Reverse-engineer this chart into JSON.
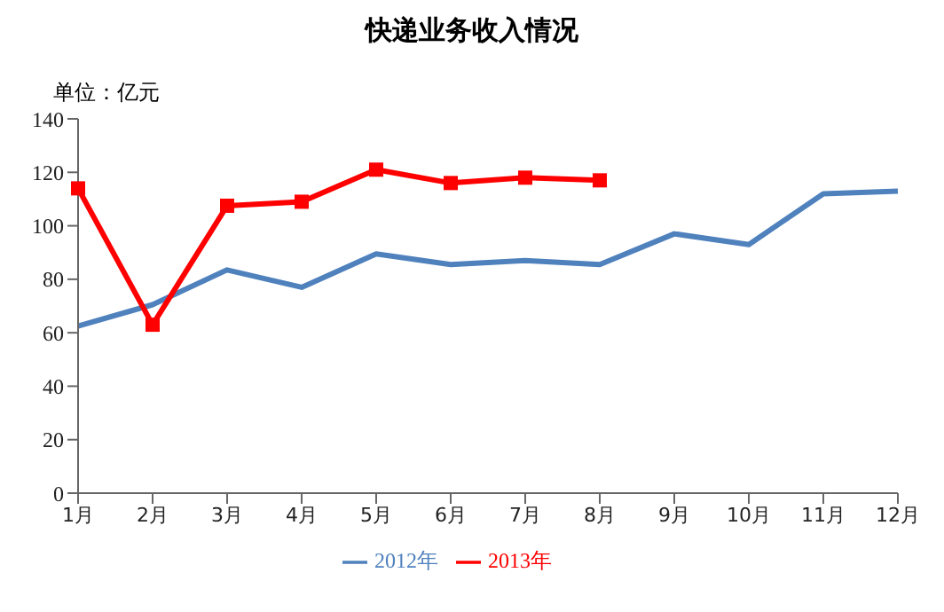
{
  "chart_data": {
    "type": "line",
    "title": "快递业务收入情况",
    "annotations": [
      "单位：亿元"
    ],
    "categories": [
      "1月",
      "2月",
      "3月",
      "4月",
      "5月",
      "6月",
      "7月",
      "8月",
      "9月",
      "10月",
      "11月",
      "12月"
    ],
    "series": [
      {
        "name": "2012年",
        "color": "#4f81bd",
        "marker": "none",
        "values": [
          62.5,
          70.5,
          83.5,
          77,
          89.5,
          85.5,
          87,
          85.5,
          97,
          93,
          112,
          113
        ]
      },
      {
        "name": "2013年",
        "color": "#ff0000",
        "marker": "square",
        "values": [
          114,
          63,
          107.5,
          109,
          121,
          116,
          118,
          117,
          null,
          null,
          null,
          null
        ]
      }
    ],
    "ylim": [
      0,
      140
    ],
    "yticks": [
      0,
      20,
      40,
      60,
      80,
      100,
      120,
      140
    ],
    "grid": false,
    "legend": "bottom"
  }
}
